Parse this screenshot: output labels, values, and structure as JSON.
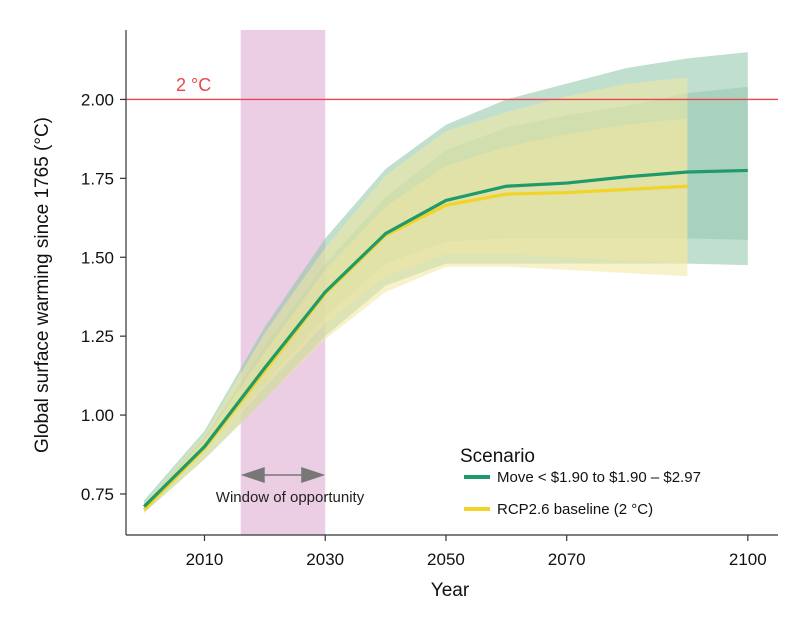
{
  "chart_data": {
    "type": "line",
    "xlabel": "Year",
    "ylabel": "Global surface warming since 1765 (°C)",
    "xlim": [
      1997,
      2105
    ],
    "ylim": [
      0.62,
      2.22
    ],
    "xticks": [
      2010,
      2030,
      2050,
      2070,
      2100
    ],
    "yticks": [
      "0.75",
      "1.00",
      "1.25",
      "1.50",
      "1.75",
      "2.00"
    ],
    "threshold": {
      "value": 2.0,
      "label": "2 °C",
      "color": "#e8474c"
    },
    "window": {
      "x0": 2016,
      "x1": 2030,
      "label": "Window of opportunity",
      "color": "#e7c6df"
    },
    "legend": {
      "title": "Scenario",
      "position": "bottom-right"
    },
    "series": [
      {
        "name": "Move < $1.90 to $1.90 – $2.97",
        "color": "#1f9a6a",
        "band_color": "#8cc4a8",
        "x": [
          2000,
          2010,
          2020,
          2030,
          2040,
          2050,
          2060,
          2070,
          2080,
          2090,
          2100
        ],
        "values": [
          0.71,
          0.9,
          1.15,
          1.39,
          1.575,
          1.68,
          1.725,
          1.735,
          1.755,
          1.77,
          1.775
        ],
        "outer_upper": [
          0.73,
          0.95,
          1.28,
          1.56,
          1.78,
          1.92,
          2.0,
          2.05,
          2.1,
          2.13,
          2.15
        ],
        "outer_lower": [
          0.69,
          0.86,
          1.05,
          1.25,
          1.41,
          1.48,
          1.48,
          1.48,
          1.48,
          1.48,
          1.475
        ],
        "inner_upper": [
          0.72,
          0.93,
          1.22,
          1.48,
          1.69,
          1.84,
          1.91,
          1.95,
          1.98,
          2.02,
          2.04
        ],
        "inner_lower": [
          0.7,
          0.88,
          1.1,
          1.31,
          1.48,
          1.55,
          1.56,
          1.56,
          1.56,
          1.56,
          1.555
        ]
      },
      {
        "name": "RCP2.6 baseline (2 °C)",
        "color": "#f2d32a",
        "band_color": "#f3e7a1",
        "x": [
          2000,
          2010,
          2020,
          2030,
          2040,
          2050,
          2060,
          2070,
          2080,
          2090
        ],
        "values": [
          0.7,
          0.895,
          1.14,
          1.385,
          1.57,
          1.665,
          1.7,
          1.705,
          1.715,
          1.725
        ],
        "outer_upper": [
          0.72,
          0.94,
          1.26,
          1.53,
          1.76,
          1.9,
          1.96,
          2.01,
          2.05,
          2.07
        ],
        "outer_lower": [
          0.69,
          0.86,
          1.05,
          1.24,
          1.39,
          1.47,
          1.47,
          1.46,
          1.45,
          1.44
        ],
        "inner_upper": [
          0.71,
          0.92,
          1.2,
          1.46,
          1.66,
          1.79,
          1.85,
          1.89,
          1.92,
          1.94
        ],
        "inner_lower": [
          0.695,
          0.88,
          1.09,
          1.29,
          1.44,
          1.51,
          1.51,
          1.5,
          1.49,
          1.48
        ]
      }
    ]
  }
}
